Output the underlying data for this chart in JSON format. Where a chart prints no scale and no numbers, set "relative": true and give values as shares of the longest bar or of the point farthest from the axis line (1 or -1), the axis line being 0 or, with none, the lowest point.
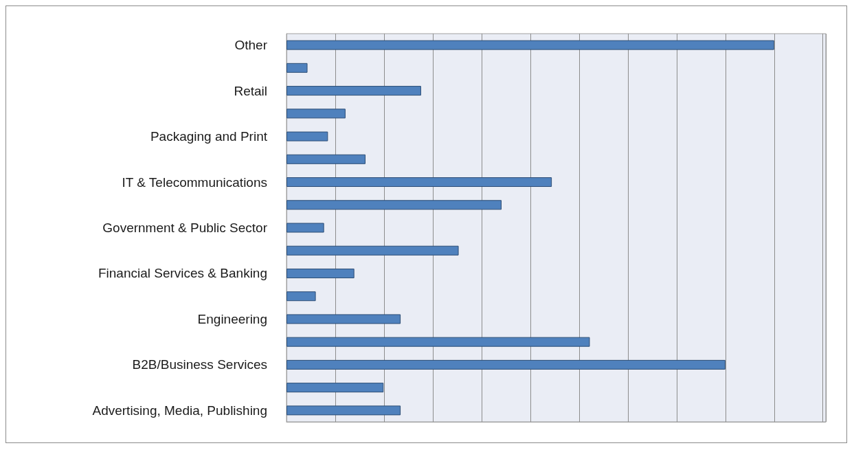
{
  "chart_data": {
    "type": "bar",
    "orientation": "horizontal",
    "relative": true,
    "grid": "x",
    "categories": [
      "Other",
      null,
      "Retail",
      null,
      "Packaging and Print",
      null,
      "IT & Telecommunications",
      null,
      "Government & Public Sector",
      null,
      "Financial Services & Banking",
      null,
      "Engineering",
      null,
      "B2B/Business Services",
      null,
      "Advertising, Media, Publishing"
    ],
    "values": [
      1,
      0.043,
      0.276,
      0.121,
      0.085,
      0.162,
      0.544,
      0.441,
      0.077,
      0.353,
      0.139,
      0.06,
      0.234,
      0.622,
      0.9,
      0.199,
      0.234
    ],
    "color": "#4f81bd"
  }
}
